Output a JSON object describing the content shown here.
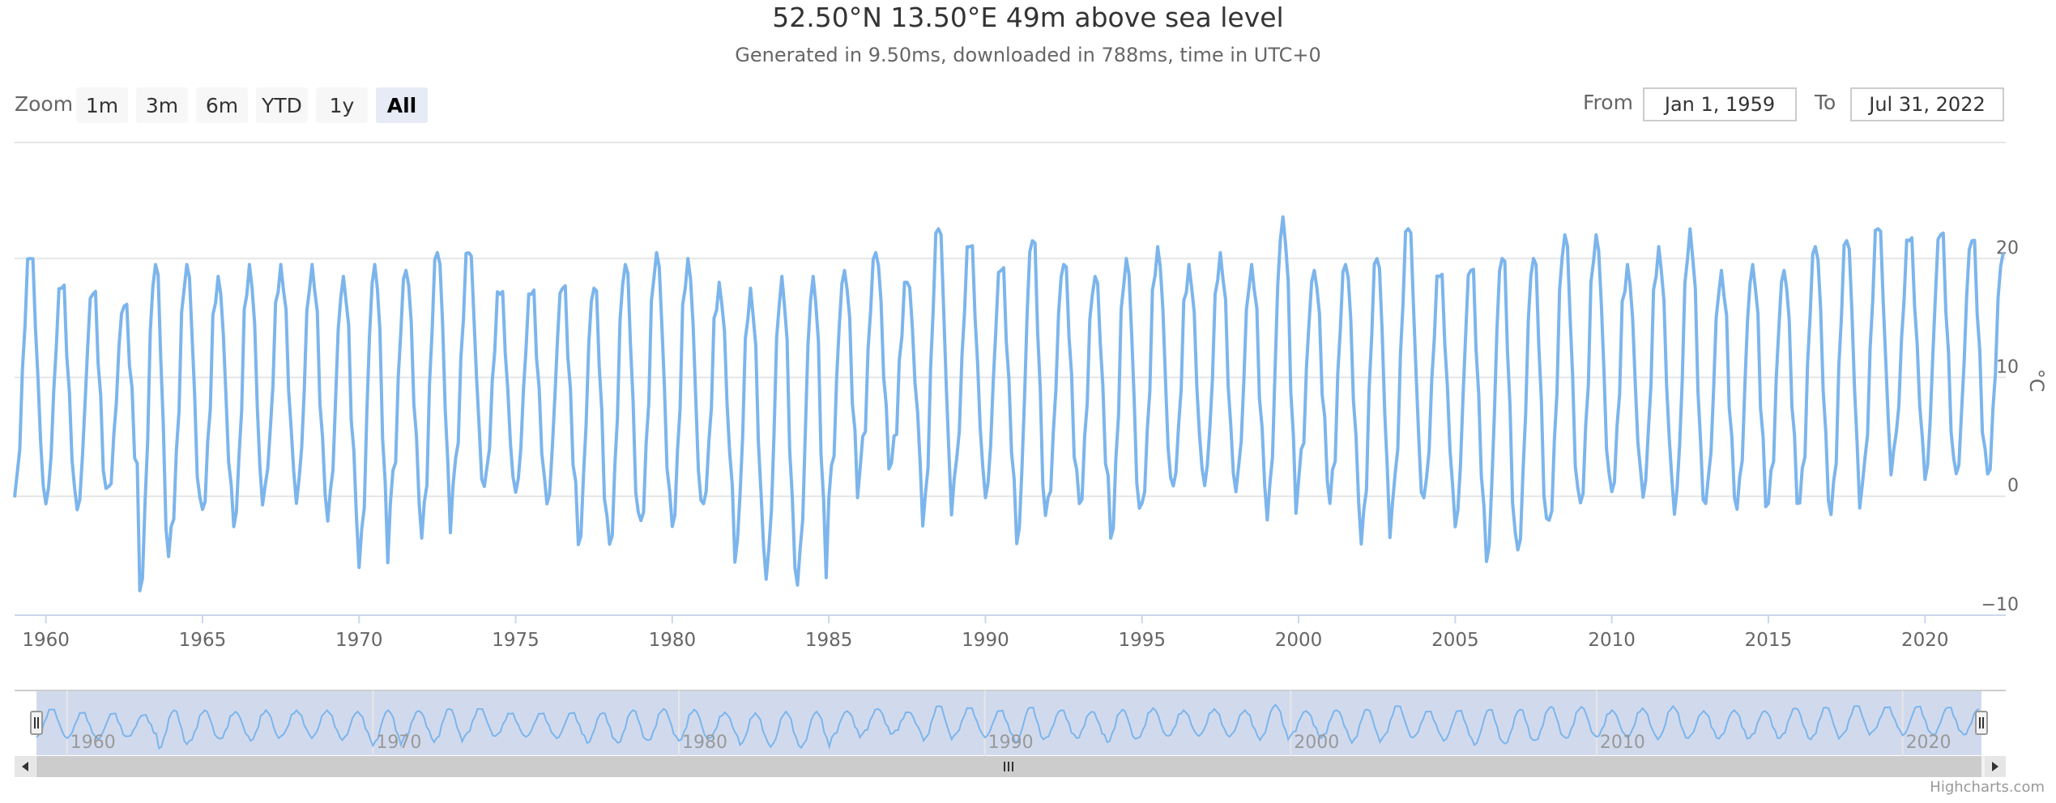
{
  "header": {
    "title": "52.50°N 13.50°E 49m above sea level",
    "subtitle": "Generated in 9.50ms, downloaded in 788ms, time in UTC+0"
  },
  "range_selector": {
    "zoom_label": "Zoom",
    "buttons": [
      "1m",
      "3m",
      "6m",
      "YTD",
      "1y",
      "All"
    ],
    "selected": "All",
    "from_label": "From",
    "from_value": "Jan 1, 1959",
    "to_label": "To",
    "to_value": "Jul 31, 2022"
  },
  "credits": "Highcharts.com",
  "colors": {
    "series": "#7cb5ec",
    "navigator_mask": "#ccd6eb",
    "active_button": "#e6ebf5"
  },
  "chart_data": {
    "type": "line",
    "title": "52.50°N 13.50°E 49m above sea level",
    "subtitle": "Generated in 9.50ms, downloaded in 788ms, time in UTC+0",
    "ylabel": "°C",
    "ylim": [
      -10,
      25
    ],
    "yticks": [
      -10,
      0,
      10,
      20
    ],
    "xlim": [
      "1959-01",
      "2022-07"
    ],
    "xticks": [
      "1960",
      "1965",
      "1970",
      "1975",
      "1980",
      "1985",
      "1990",
      "1995",
      "2000",
      "2005",
      "2010",
      "2015",
      "2020"
    ],
    "navigator_ticks": [
      "1960",
      "1970",
      "1980",
      "1990",
      "2000",
      "2010",
      "2020"
    ],
    "grid": true,
    "legend": "none",
    "series": [
      {
        "frequency": "monthly",
        "start": "1959-01",
        "end": "2022-07",
        "summer_peaks": [
          20,
          17.5,
          17,
          16,
          19.5,
          19.5,
          18.5,
          19.5,
          19.5,
          19.5,
          18.5,
          19.5,
          19,
          20.5,
          20.5,
          17,
          17,
          17.5,
          17.5,
          19.5,
          20.5,
          20,
          18,
          17.5,
          18.5,
          18.5,
          19,
          20.5,
          18,
          22.5,
          21,
          19,
          21.5,
          19.5,
          18.5,
          20,
          21,
          19.5,
          20.5,
          19.5,
          23.5,
          19,
          19.5,
          20,
          22.5,
          18.5,
          19,
          20,
          20,
          22,
          22,
          19.5,
          21,
          22.5,
          19,
          19.5,
          19,
          21,
          21.5,
          22.5,
          21.5,
          22,
          21.5,
          20.5
        ],
        "winter_lows": [
          -0.5,
          -1,
          -1.5,
          0.5,
          -8.5,
          -3,
          -1.5,
          -3,
          0.5,
          -1,
          -2.5,
          -6.5,
          -1,
          -4,
          0.5,
          0.5,
          0,
          -1,
          -4.5,
          -4.5,
          -2.5,
          -3,
          -1,
          -6,
          -7.5,
          -8,
          -0.5,
          2,
          2.5,
          -3,
          1,
          -0.5,
          -4.5,
          -0.5,
          -1,
          -4,
          -1,
          0.5,
          0.5,
          0,
          -2.5,
          1,
          -1,
          -4.5,
          -1,
          -0.5,
          -3,
          -6,
          -5,
          -2.5,
          -1,
          0,
          -0.5,
          -2,
          -1,
          -1.5,
          -1,
          -1,
          -2,
          0.5,
          3.5,
          1,
          1.5,
          1.5
        ],
        "monthly_shape": [
          0.02,
          0.1,
          0.25,
          0.5,
          0.78,
          0.94,
          1.0,
          0.95,
          0.75,
          0.48,
          0.25,
          0.08
        ]
      }
    ]
  }
}
